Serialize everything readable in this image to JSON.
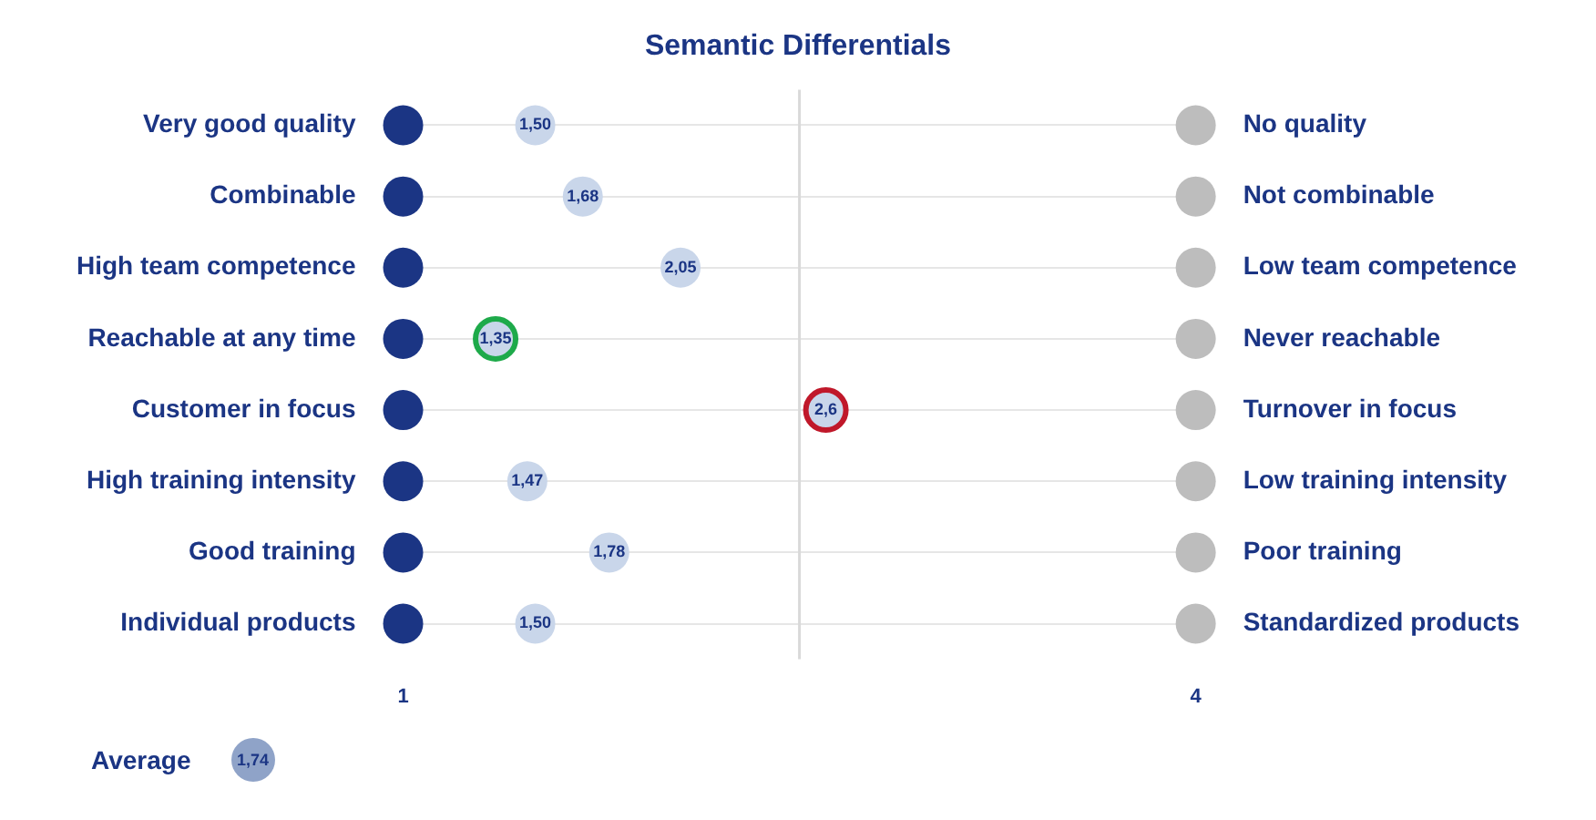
{
  "chart_data": {
    "type": "scatter",
    "orientation": "horizontal",
    "title": "Semantic Differentials",
    "categories": [
      "Very good quality",
      "Combinable",
      "High team competence",
      "Reachable at any time",
      "Customer in focus",
      "High training intensity",
      "Good training",
      "Individual products"
    ],
    "y2_categories": [
      "No quality",
      "Not combinable",
      "Low team competence",
      "Never reachable",
      "Turnover in focus",
      "Low training intensity",
      "Poor training",
      "Standardized products"
    ],
    "series": [
      {
        "color": "#1b3584",
        "values": [
          1,
          1,
          1,
          1,
          1,
          1,
          1,
          1
        ]
      },
      {
        "color": "#bdbdbd",
        "values": [
          4,
          4,
          4,
          4,
          4,
          4,
          4,
          4
        ]
      },
      {
        "color": "#c9d6ea",
        "colors": [
          "#c9d6ea",
          "#c9d6ea",
          "#c9d6ea",
          "#1eaa4a",
          "#c0182a",
          "#c9d6ea",
          "#c9d6ea",
          "#c9d6ea"
        ],
        "values": [
          1.5,
          1.68,
          2.05,
          1.35,
          2.6,
          1.47,
          1.78,
          1.5
        ],
        "value_labels": [
          "1,50",
          "1,68",
          "2,05",
          "1,35",
          "2,6",
          "1,47",
          "1,78",
          "1,50"
        ]
      }
    ],
    "xlim": [
      1,
      4
    ],
    "xticks": [
      1,
      4
    ],
    "grid": "y",
    "marker": "circle",
    "ref_lines": [
      {
        "axis": "x",
        "value": 2.5,
        "color": "#d9d9d9"
      }
    ],
    "annotations": [
      "Average",
      "1,74"
    ]
  }
}
